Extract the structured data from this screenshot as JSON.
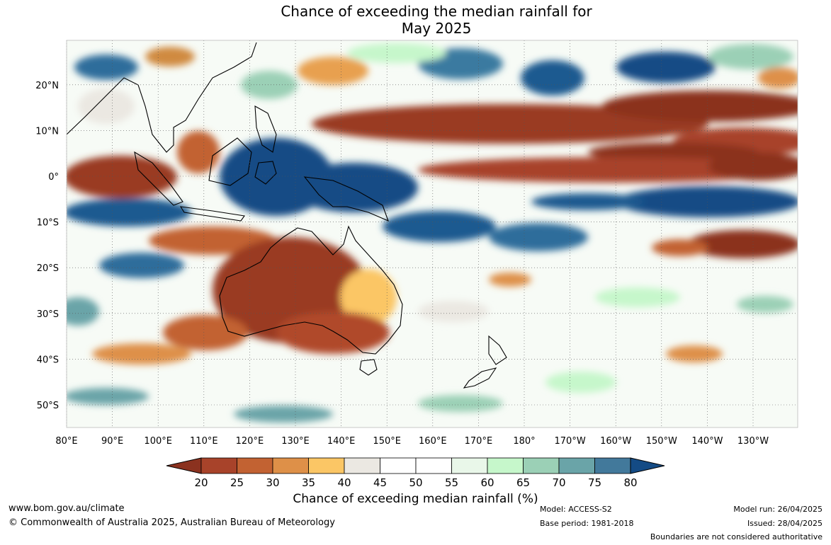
{
  "title": {
    "line1": "Chance of exceeding the median rainfall for",
    "line2": "May 2025"
  },
  "map": {
    "lat_labels": [
      "20°N",
      "10°N",
      "0°",
      "10°S",
      "20°S",
      "30°S",
      "40°S",
      "50°S"
    ],
    "lon_labels": [
      "80°E",
      "90°E",
      "100°E",
      "110°E",
      "120°E",
      "130°E",
      "140°E",
      "150°E",
      "160°E",
      "170°E",
      "180°",
      "170°W",
      "160°W",
      "150°W",
      "140°W",
      "130°W"
    ]
  },
  "colorbar": {
    "title": "Chance of exceeding median rainfall (%)",
    "ticks": [
      "20",
      "25",
      "30",
      "35",
      "40",
      "45",
      "50",
      "55",
      "60",
      "65",
      "70",
      "75",
      "80"
    ],
    "colors": [
      "#a8432a",
      "#c26232",
      "#de9048",
      "#fbc665",
      "#ebe8e2",
      "#ffffff",
      "#ffffff",
      "#e9f7e9",
      "#c6f7cb",
      "#9bd0b6",
      "#6aa4a8",
      "#42799b"
    ],
    "under_color": "#8b321f",
    "over_color": "#144b85"
  },
  "footer": {
    "url": "www.bom.gov.au/climate",
    "copyright": "© Commonwealth of Australia 2025, Australian Bureau of Meteorology",
    "model": "Model: ACCESS-S2",
    "base_period": "Base period: 1981-2018",
    "model_run": "Model run: 26/04/2025",
    "issued": "Issued: 28/04/2025",
    "boundaries": "Boundaries are not considered authoritative"
  }
}
